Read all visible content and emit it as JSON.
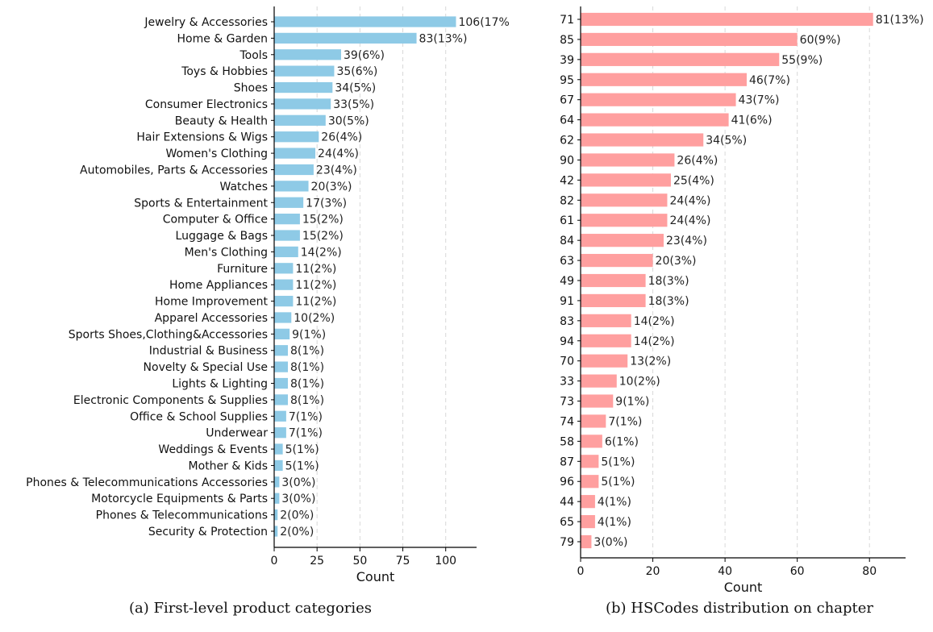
{
  "chart_data": [
    {
      "type": "bar",
      "orientation": "horizontal",
      "caption": "(a) First-level product categories",
      "xlabel": "Count",
      "ylabel": "",
      "xlim": [
        0,
        118
      ],
      "xticks": [
        0,
        25,
        50,
        75,
        100
      ],
      "grid": "vertical dashed",
      "colors": {
        "bar": "#8ecae6"
      },
      "categories": [
        "Jewelry & Accessories",
        "Home & Garden",
        "Tools",
        "Toys & Hobbies",
        "Shoes",
        "Consumer Electronics",
        "Beauty & Health",
        "Hair Extensions & Wigs",
        "Women's Clothing",
        "Automobiles, Parts & Accessories",
        "Watches",
        "Sports & Entertainment",
        "Computer & Office",
        "Luggage & Bags",
        "Men's Clothing",
        "Furniture",
        "Home Appliances",
        "Home Improvement",
        "Apparel Accessories",
        "Sports Shoes,Clothing&Accessories",
        "Industrial & Business",
        "Novelty & Special Use",
        "Lights & Lighting",
        "Electronic Components & Supplies",
        "Office & School Supplies",
        "Underwear",
        "Weddings & Events",
        "Mother & Kids",
        "Phones & Telecommunications Accessories",
        "Motorcycle Equipments & Parts",
        "Phones & Telecommunications",
        "Security & Protection"
      ],
      "values": [
        106,
        83,
        39,
        35,
        34,
        33,
        30,
        26,
        24,
        23,
        20,
        17,
        15,
        15,
        14,
        11,
        11,
        11,
        10,
        9,
        8,
        8,
        8,
        8,
        7,
        7,
        5,
        5,
        3,
        3,
        2,
        2
      ],
      "data_labels": [
        "106(17%",
        "83(13%)",
        "39(6%)",
        "35(6%)",
        "34(5%)",
        "33(5%)",
        "30(5%)",
        "26(4%)",
        "24(4%)",
        "23(4%)",
        "20(3%)",
        "17(3%)",
        "15(2%)",
        "15(2%)",
        "14(2%)",
        "11(2%)",
        "11(2%)",
        "11(2%)",
        "10(2%)",
        "9(1%)",
        "8(1%)",
        "8(1%)",
        "8(1%)",
        "8(1%)",
        "7(1%)",
        "7(1%)",
        "5(1%)",
        "5(1%)",
        "3(0%)",
        "3(0%)",
        "2(0%)",
        "2(0%)"
      ]
    },
    {
      "type": "bar",
      "orientation": "horizontal",
      "caption": "(b) HSCodes distribution on chapter",
      "xlabel": "Count",
      "ylabel": "",
      "xlim": [
        0,
        90
      ],
      "xticks": [
        0,
        20,
        40,
        60,
        80
      ],
      "grid": "vertical dashed",
      "colors": {
        "bar": "#ff9f9f"
      },
      "categories": [
        "71",
        "85",
        "39",
        "95",
        "67",
        "64",
        "62",
        "90",
        "42",
        "82",
        "61",
        "84",
        "63",
        "49",
        "91",
        "83",
        "94",
        "70",
        "33",
        "73",
        "74",
        "58",
        "87",
        "96",
        "44",
        "65",
        "79"
      ],
      "values": [
        81,
        60,
        55,
        46,
        43,
        41,
        34,
        26,
        25,
        24,
        24,
        23,
        20,
        18,
        18,
        14,
        14,
        13,
        10,
        9,
        7,
        6,
        5,
        5,
        4,
        4,
        3
      ],
      "data_labels": [
        "81(13%)",
        "60(9%)",
        "55(9%)",
        "46(7%)",
        "43(7%)",
        "41(6%)",
        "34(5%)",
        "26(4%)",
        "25(4%)",
        "24(4%)",
        "24(4%)",
        "23(4%)",
        "20(3%)",
        "18(3%)",
        "18(3%)",
        "14(2%)",
        "14(2%)",
        "13(2%)",
        "10(2%)",
        "9(1%)",
        "7(1%)",
        "6(1%)",
        "5(1%)",
        "5(1%)",
        "4(1%)",
        "4(1%)",
        "3(0%)"
      ]
    }
  ]
}
